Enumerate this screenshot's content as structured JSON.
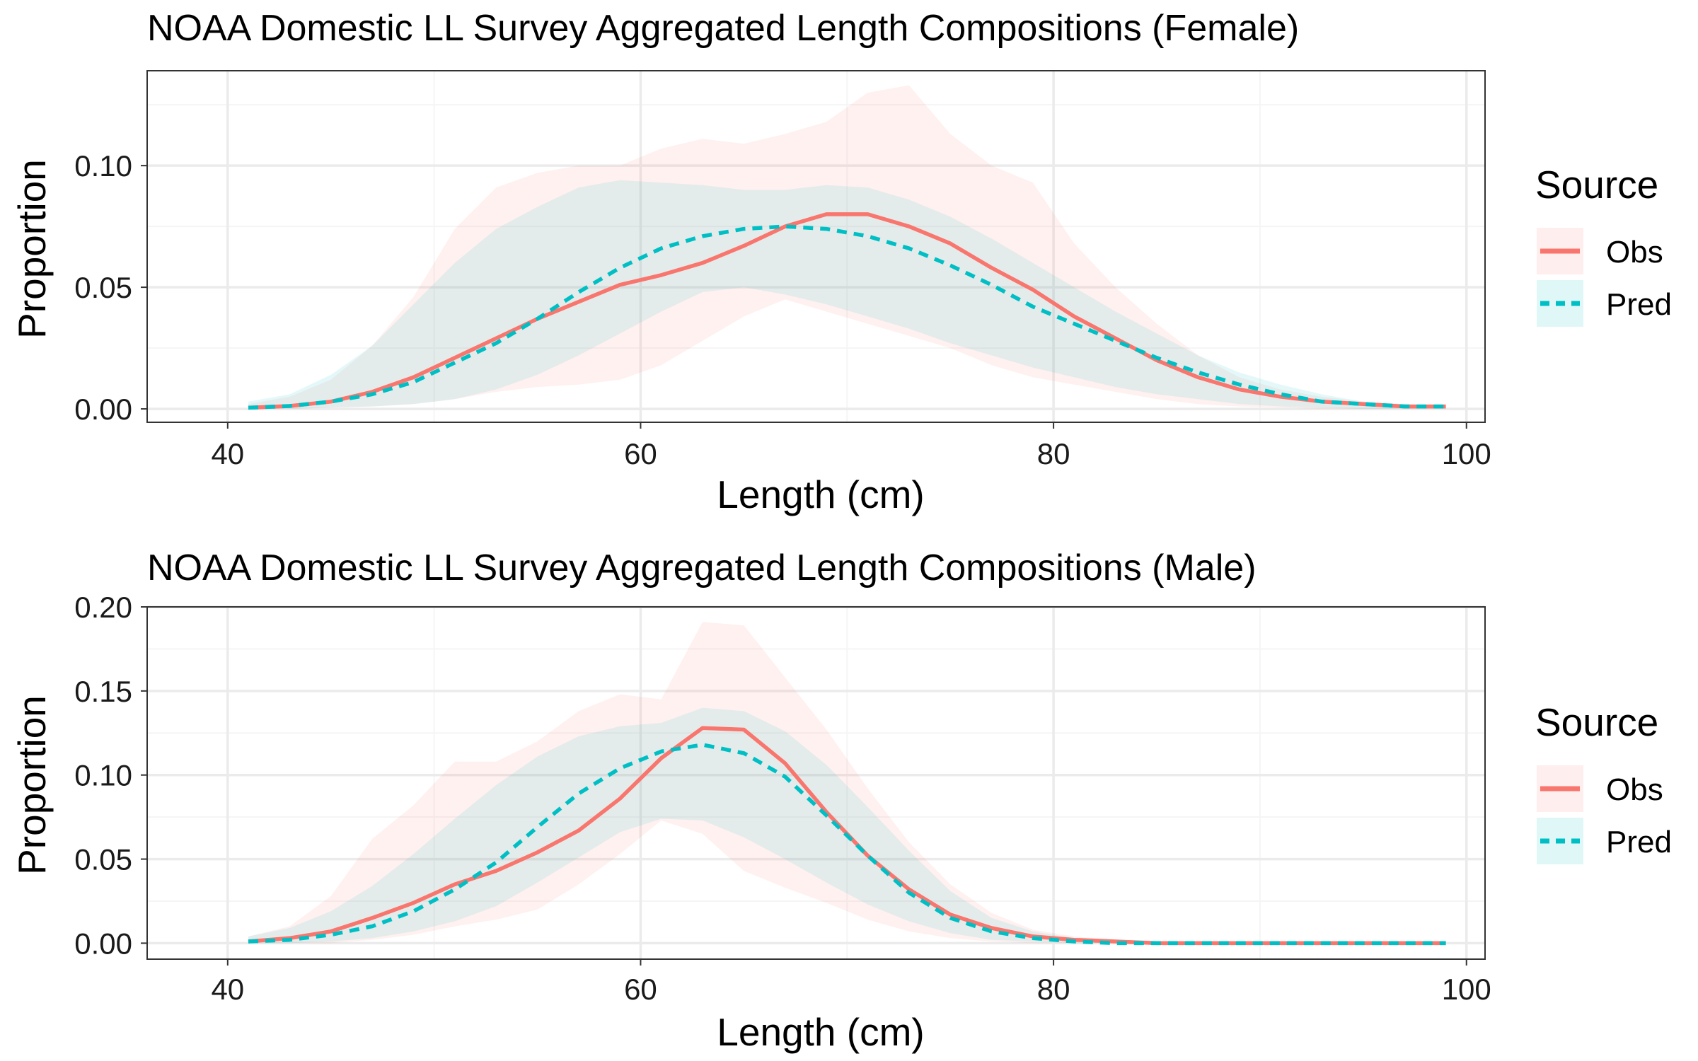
{
  "colors": {
    "obs": "#F8766D",
    "pred": "#00BFC4",
    "panel_border": "#333333",
    "grid_major": "#EBEBEB",
    "grid_minor": "#F5F5F5",
    "text": "#000000",
    "tick_text": "#1A1A1A"
  },
  "chart_data": [
    {
      "type": "line",
      "title": "NOAA Domestic LL Survey Aggregated Length Compositions (Female)",
      "xlabel": "Length (cm)",
      "ylabel": "Proportion",
      "xlim": [
        36.1,
        100.9
      ],
      "ylim": [
        -0.0055,
        0.139
      ],
      "xticks": [
        40,
        60,
        80,
        100
      ],
      "xtick_labels": [
        "40",
        "60",
        "80",
        "100"
      ],
      "yticks": [
        0.0,
        0.05,
        0.1
      ],
      "ytick_labels": [
        "0.00",
        "0.05",
        "0.10"
      ],
      "grid": true,
      "legend": {
        "title": "Source",
        "position": "right",
        "entries": [
          "Obs",
          "Pred"
        ]
      },
      "x": [
        41,
        43,
        45,
        47,
        49,
        51,
        53,
        55,
        57,
        59,
        61,
        63,
        65,
        67,
        69,
        71,
        73,
        75,
        77,
        79,
        81,
        83,
        85,
        87,
        89,
        91,
        93,
        95,
        97,
        99
      ],
      "series": [
        {
          "name": "Obs",
          "style": "solid",
          "values": [
            0.0005,
            0.0012,
            0.003,
            0.007,
            0.013,
            0.021,
            0.029,
            0.037,
            0.044,
            0.051,
            0.055,
            0.06,
            0.067,
            0.075,
            0.08,
            0.08,
            0.075,
            0.068,
            0.058,
            0.049,
            0.038,
            0.029,
            0.02,
            0.013,
            0.008,
            0.005,
            0.003,
            0.002,
            0.001,
            0.001
          ],
          "lower": [
            0.0,
            0.0,
            0.0005,
            0.001,
            0.002,
            0.004,
            0.007,
            0.009,
            0.01,
            0.012,
            0.018,
            0.028,
            0.038,
            0.045,
            0.04,
            0.035,
            0.03,
            0.025,
            0.018,
            0.013,
            0.01,
            0.007,
            0.004,
            0.002,
            0.001,
            0.0005,
            0.0,
            0.0,
            0.0,
            0.0
          ],
          "upper": [
            0.002,
            0.005,
            0.012,
            0.026,
            0.046,
            0.074,
            0.091,
            0.097,
            0.1,
            0.1,
            0.107,
            0.111,
            0.109,
            0.113,
            0.118,
            0.13,
            0.133,
            0.113,
            0.1,
            0.093,
            0.068,
            0.05,
            0.035,
            0.022,
            0.013,
            0.008,
            0.005,
            0.003,
            0.002,
            0.001
          ]
        },
        {
          "name": "Pred",
          "style": "dashed",
          "values": [
            0.0005,
            0.0012,
            0.003,
            0.006,
            0.011,
            0.019,
            0.027,
            0.037,
            0.048,
            0.058,
            0.066,
            0.071,
            0.074,
            0.075,
            0.074,
            0.071,
            0.066,
            0.059,
            0.051,
            0.042,
            0.035,
            0.028,
            0.021,
            0.015,
            0.01,
            0.006,
            0.003,
            0.002,
            0.001,
            0.001
          ],
          "lower": [
            0.0,
            0.0,
            0.0005,
            0.001,
            0.002,
            0.004,
            0.008,
            0.014,
            0.022,
            0.031,
            0.04,
            0.048,
            0.05,
            0.047,
            0.043,
            0.038,
            0.033,
            0.027,
            0.022,
            0.017,
            0.013,
            0.009,
            0.006,
            0.004,
            0.002,
            0.001,
            0.0005,
            0.0,
            0.0,
            0.0
          ],
          "upper": [
            0.003,
            0.006,
            0.014,
            0.026,
            0.043,
            0.06,
            0.074,
            0.083,
            0.091,
            0.094,
            0.093,
            0.092,
            0.09,
            0.09,
            0.092,
            0.091,
            0.086,
            0.079,
            0.07,
            0.06,
            0.05,
            0.04,
            0.031,
            0.022,
            0.015,
            0.01,
            0.006,
            0.003,
            0.002,
            0.001
          ]
        }
      ]
    },
    {
      "type": "line",
      "title": "NOAA Domestic LL Survey Aggregated Length Compositions (Male)",
      "xlabel": "Length (cm)",
      "ylabel": "Proportion",
      "xlim": [
        36.1,
        100.9
      ],
      "ylim": [
        -0.0095,
        0.2
      ],
      "xticks": [
        40,
        60,
        80,
        100
      ],
      "xtick_labels": [
        "40",
        "60",
        "80",
        "100"
      ],
      "yticks": [
        0.0,
        0.05,
        0.1,
        0.15,
        0.2
      ],
      "ytick_labels": [
        "0.00",
        "0.05",
        "0.10",
        "0.15",
        "0.20"
      ],
      "grid": true,
      "legend": {
        "title": "Source",
        "position": "right",
        "entries": [
          "Obs",
          "Pred"
        ]
      },
      "x": [
        41,
        43,
        45,
        47,
        49,
        51,
        53,
        55,
        57,
        59,
        61,
        63,
        65,
        67,
        69,
        71,
        73,
        75,
        77,
        79,
        81,
        83,
        85,
        87,
        89,
        91,
        93,
        95,
        97,
        99
      ],
      "series": [
        {
          "name": "Obs",
          "style": "solid",
          "values": [
            0.001,
            0.003,
            0.007,
            0.015,
            0.024,
            0.035,
            0.043,
            0.054,
            0.067,
            0.086,
            0.11,
            0.128,
            0.127,
            0.107,
            0.078,
            0.052,
            0.032,
            0.017,
            0.009,
            0.004,
            0.002,
            0.001,
            0.0,
            0.0,
            0.0,
            0.0,
            0.0,
            0.0,
            0.0,
            0.0
          ],
          "lower": [
            0.0,
            0.0,
            0.0,
            0.002,
            0.005,
            0.01,
            0.014,
            0.02,
            0.035,
            0.053,
            0.073,
            0.065,
            0.043,
            0.033,
            0.024,
            0.014,
            0.007,
            0.003,
            0.001,
            0.0,
            0.0,
            0.0,
            0.0,
            0.0,
            0.0,
            0.0,
            0.0,
            0.0,
            0.0,
            0.0
          ],
          "upper": [
            0.004,
            0.01,
            0.028,
            0.062,
            0.082,
            0.108,
            0.108,
            0.12,
            0.138,
            0.148,
            0.145,
            0.191,
            0.189,
            0.158,
            0.127,
            0.092,
            0.06,
            0.035,
            0.018,
            0.008,
            0.004,
            0.002,
            0.001,
            0.0,
            0.0,
            0.0,
            0.0,
            0.0,
            0.0,
            0.0
          ]
        },
        {
          "name": "Pred",
          "style": "dashed",
          "values": [
            0.001,
            0.002,
            0.005,
            0.01,
            0.019,
            0.032,
            0.048,
            0.069,
            0.089,
            0.104,
            0.114,
            0.118,
            0.113,
            0.099,
            0.076,
            0.052,
            0.03,
            0.015,
            0.007,
            0.003,
            0.001,
            0.0,
            0.0,
            0.0,
            0.0,
            0.0,
            0.0,
            0.0,
            0.0,
            0.0
          ],
          "lower": [
            0.0,
            0.0,
            0.001,
            0.003,
            0.007,
            0.013,
            0.022,
            0.036,
            0.051,
            0.066,
            0.074,
            0.073,
            0.063,
            0.05,
            0.036,
            0.023,
            0.013,
            0.006,
            0.002,
            0.001,
            0.0,
            0.0,
            0.0,
            0.0,
            0.0,
            0.0,
            0.0,
            0.0,
            0.0,
            0.0
          ],
          "upper": [
            0.004,
            0.009,
            0.019,
            0.034,
            0.053,
            0.074,
            0.094,
            0.111,
            0.123,
            0.129,
            0.131,
            0.14,
            0.138,
            0.126,
            0.106,
            0.081,
            0.055,
            0.031,
            0.015,
            0.007,
            0.003,
            0.001,
            0.0,
            0.0,
            0.0,
            0.0,
            0.0,
            0.0,
            0.0,
            0.0
          ]
        }
      ]
    }
  ]
}
